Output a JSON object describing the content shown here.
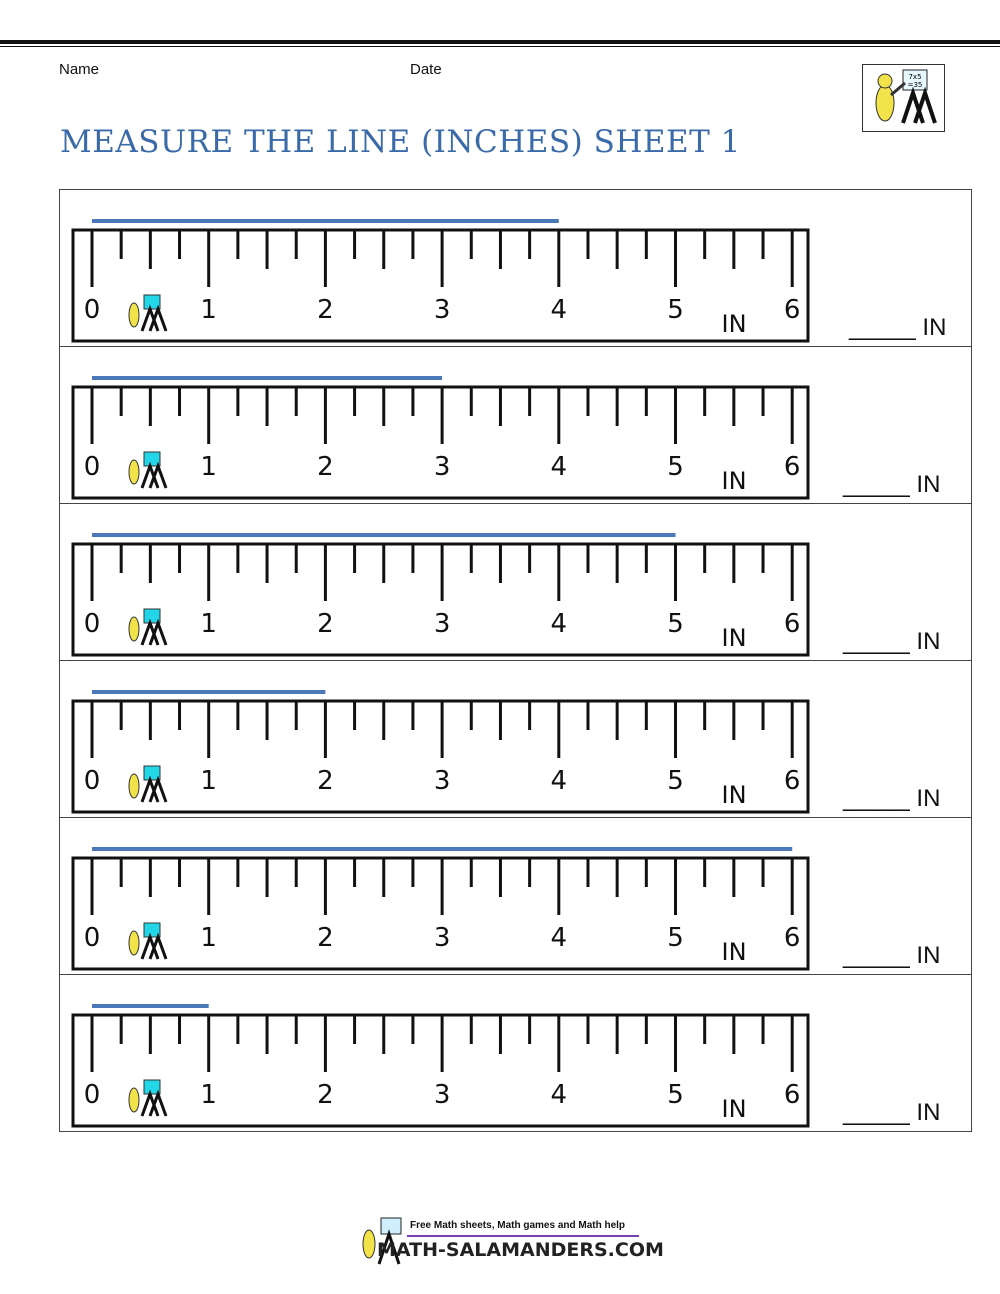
{
  "header": {
    "name_label": "Name",
    "date_label": "Date",
    "title": "MEASURE THE LINE (INCHES) SHEET 1"
  },
  "ruler": {
    "numbers": [
      "0",
      "1",
      "2",
      "3",
      "4",
      "5",
      "6"
    ],
    "unit_label": "IN"
  },
  "rows": [
    {
      "line_length_in": 4,
      "answer": "_____ IN"
    },
    {
      "line_length_in": 3,
      "answer": "_____ IN"
    },
    {
      "line_length_in": 5,
      "answer": "_____ IN"
    },
    {
      "line_length_in": 2,
      "answer": "_____ IN"
    },
    {
      "line_length_in": 6,
      "answer": "_____ IN"
    },
    {
      "line_length_in": 1,
      "answer": "_____ IN"
    }
  ],
  "footer": {
    "tagline": "Free Math sheets, Math games and Math help",
    "site": "MATH-SALAMANDERS.COM"
  },
  "colors": {
    "line": "#4a78b8",
    "title": "#3a6aa8",
    "footer_rule": "#7a3fb0"
  }
}
